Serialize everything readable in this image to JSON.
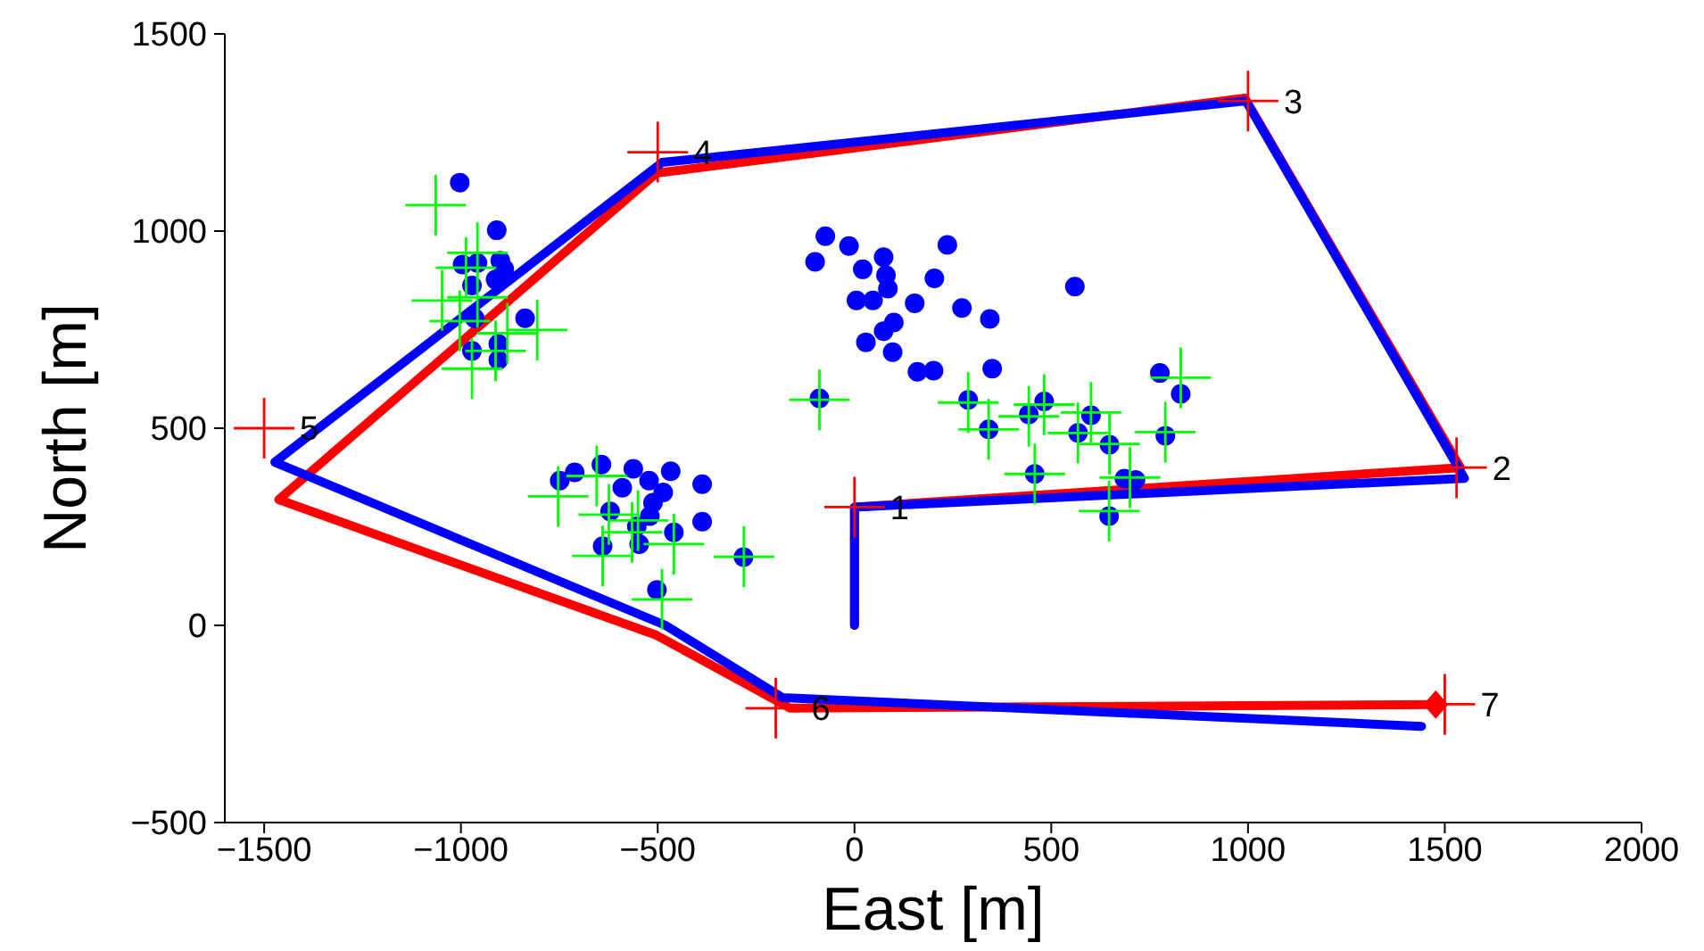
{
  "chart_data": {
    "type": "line",
    "xlabel": "East [m]",
    "ylabel": "North [m]",
    "xlim": [
      -1600,
      2000
    ],
    "xticks": [
      -1500,
      -1000,
      -500,
      0,
      500,
      1000,
      1500,
      2000
    ],
    "ylim": [
      -500,
      1500
    ],
    "yticks": [
      -500,
      0,
      500,
      1000,
      1500
    ],
    "grid": false,
    "legend": false,
    "series": [
      {
        "color": "#ff0000",
        "marker": "none",
        "line_style": "solid",
        "x": [
          0,
          0,
          1540,
          992,
          -503,
          -1463,
          -503,
          -163,
          1477
        ],
        "values": [
          0,
          300,
          400,
          1337,
          1147,
          319,
          -25,
          -210,
          -201
        ]
      },
      {
        "color": "#0000ff",
        "marker": "none",
        "line_style": "solid",
        "x": [
          0,
          0,
          1550,
          995,
          -489,
          -1473,
          -480,
          -183,
          1441
        ],
        "values": [
          0,
          300,
          373,
          1330,
          1174,
          414,
          0,
          -183,
          -256
        ]
      },
      {
        "type": "scatter",
        "color": "#0000ff",
        "marker": "circle",
        "x": [
          -1003,
          -909,
          -996,
          -958,
          -900,
          -890,
          -972,
          -912,
          -837,
          -965,
          -905,
          -972,
          -905,
          -749,
          -711,
          -643,
          -562,
          -522,
          -467,
          -387,
          -590,
          -486,
          -512,
          -621,
          -387,
          -520,
          -553,
          -459,
          -640,
          -547,
          -282,
          -502,
          -89,
          -74,
          -100,
          -14,
          74,
          21,
          236,
          80,
          85,
          5,
          47,
          203,
          153,
          273,
          344,
          100,
          74,
          29,
          97,
          160,
          201,
          350,
          560,
          289,
          341,
          482,
          443,
          601,
          568,
          648,
          790,
          776,
          829,
          458,
          686,
          714,
          647
        ],
        "values": [
          1123,
          1002,
          915,
          919,
          925,
          904,
          862,
          877,
          779,
          779,
          714,
          696,
          673,
          367,
          388,
          408,
          397,
          367,
          391,
          358,
          349,
          337,
          311,
          289,
          263,
          277,
          251,
          236,
          201,
          206,
          173,
          90,
          576,
          987,
          922,
          962,
          934,
          903,
          965,
          888,
          854,
          824,
          824,
          880,
          817,
          805,
          777,
          768,
          746,
          718,
          693,
          643,
          646,
          651,
          859,
          572,
          497,
          568,
          535,
          533,
          488,
          458,
          481,
          640,
          587,
          384,
          372,
          369,
          277
        ]
      },
      {
        "type": "scatter",
        "color": "#00ff00",
        "marker": "cross",
        "x": [
          -89,
          289,
          341,
          482,
          443,
          601,
          568,
          648,
          790,
          829,
          458,
          700,
          647,
          -281,
          -753,
          -655,
          -624,
          -550,
          -565,
          -459,
          -640,
          -489,
          -1064,
          -958,
          -987,
          -1048,
          -958,
          -1003,
          -882,
          -972,
          -912,
          -806
        ],
        "values": [
          572,
          565,
          497,
          560,
          530,
          540,
          488,
          460,
          490,
          628,
          384,
          375,
          290,
          174,
          327,
          379,
          281,
          266,
          236,
          206,
          176,
          66,
          1066,
          945,
          907,
          824,
          832,
          772,
          741,
          651,
          696,
          749
        ]
      },
      {
        "type": "scatter",
        "color": "#ff0000",
        "marker": "cross",
        "x": [
          0,
          1530,
          1000,
          -500,
          -1500,
          -200,
          1500
        ],
        "values": [
          300,
          400,
          1330,
          1200,
          500,
          -210,
          -200
        ]
      },
      {
        "type": "scatter",
        "color": "#ff0000",
        "marker": "diamond",
        "x": [
          1477
        ],
        "values": [
          -201
        ]
      }
    ],
    "annotations": [
      {
        "text": "1",
        "x": 0,
        "y": 300
      },
      {
        "text": "2",
        "x": 1530,
        "y": 400
      },
      {
        "text": "3",
        "x": 1000,
        "y": 1330
      },
      {
        "text": "4",
        "x": -500,
        "y": 1200
      },
      {
        "text": "5",
        "x": -1500,
        "y": 500
      },
      {
        "text": "6",
        "x": -200,
        "y": -210
      },
      {
        "text": "7",
        "x": 1500,
        "y": -200
      }
    ]
  }
}
